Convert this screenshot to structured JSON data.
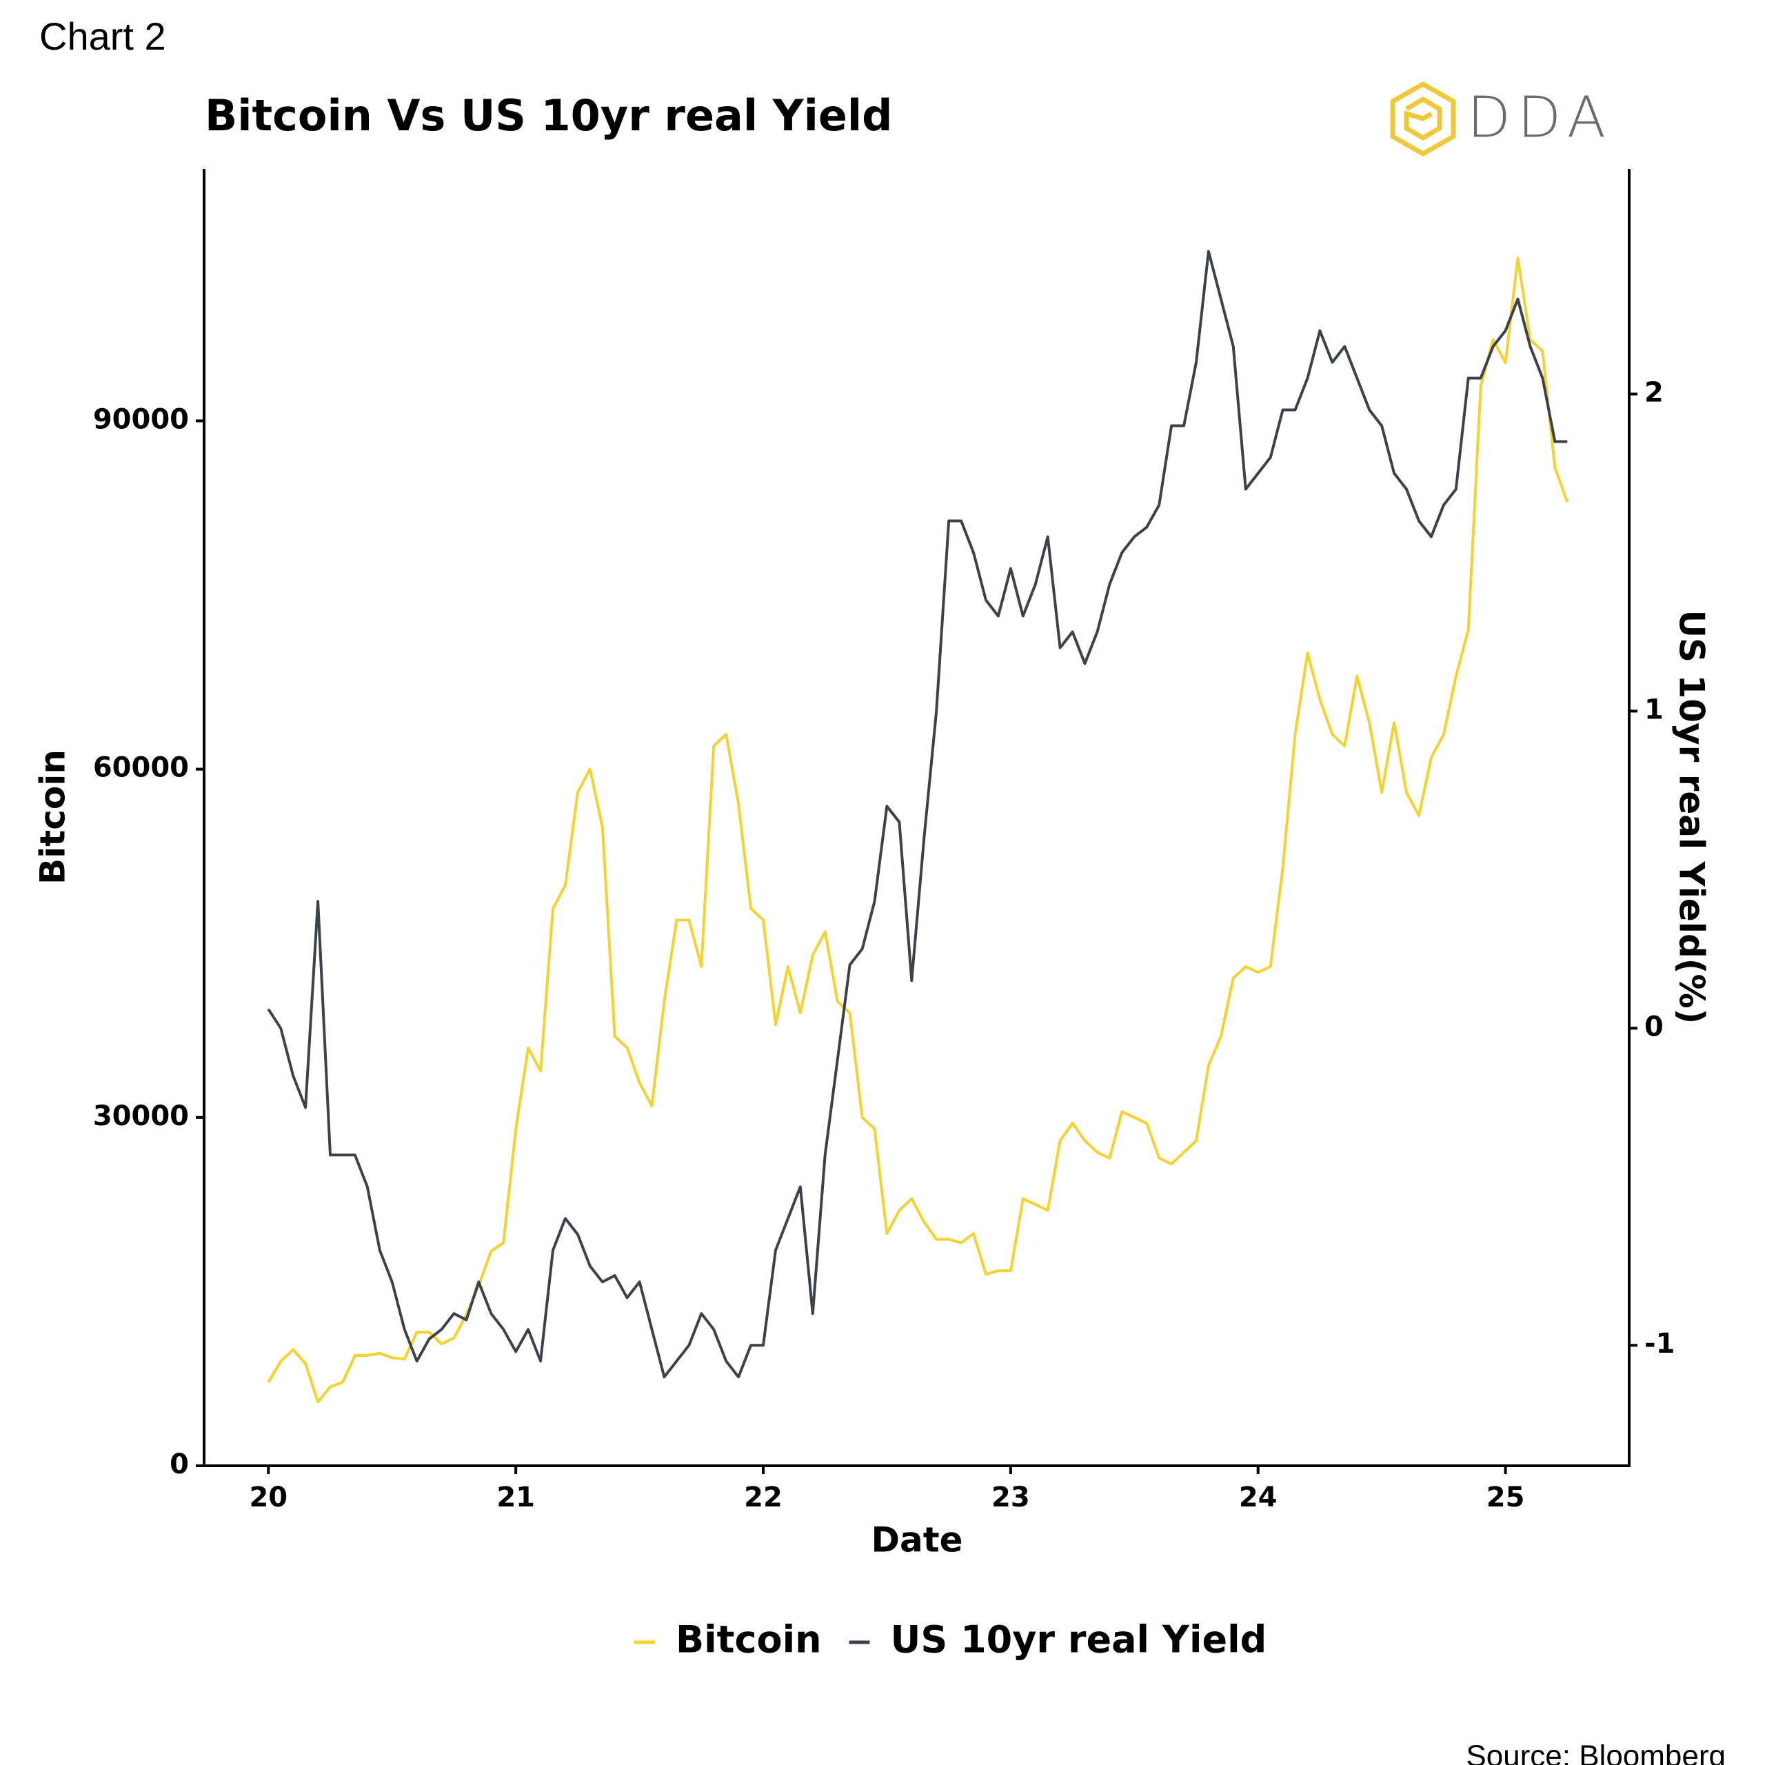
{
  "chart_data": {
    "type": "line",
    "chart_label": "Chart 2",
    "title": "Bitcoin Vs US 10yr real Yield",
    "logo_text": "DDA",
    "xlabel": "Date",
    "ylabel": "Bitcoin",
    "y2label": "US 10yr real Yield(%)",
    "source": "Source: Bloomberg",
    "legend": "bottom",
    "xlim": [
      19.74,
      25.5
    ],
    "xticks": [
      20,
      21,
      22,
      23,
      24,
      25
    ],
    "ylim": [
      0,
      111700
    ],
    "yticks": [
      0,
      30000,
      60000,
      90000
    ],
    "y2lim": [
      -1.38,
      2.71
    ],
    "y2ticks": [
      -1,
      0,
      1,
      2
    ],
    "x": [
      20.0,
      20.05,
      20.1,
      20.15,
      20.2,
      20.25,
      20.3,
      20.35,
      20.4,
      20.45,
      20.5,
      20.55,
      20.6,
      20.65,
      20.7,
      20.75,
      20.8,
      20.85,
      20.9,
      20.95,
      21.0,
      21.05,
      21.1,
      21.15,
      21.2,
      21.25,
      21.3,
      21.35,
      21.4,
      21.45,
      21.5,
      21.55,
      21.6,
      21.65,
      21.7,
      21.75,
      21.8,
      21.85,
      21.9,
      21.95,
      22.0,
      22.05,
      22.1,
      22.15,
      22.2,
      22.25,
      22.3,
      22.35,
      22.4,
      22.45,
      22.5,
      22.55,
      22.6,
      22.65,
      22.7,
      22.75,
      22.8,
      22.85,
      22.9,
      22.95,
      23.0,
      23.05,
      23.1,
      23.15,
      23.2,
      23.25,
      23.3,
      23.35,
      23.4,
      23.45,
      23.5,
      23.55,
      23.6,
      23.65,
      23.7,
      23.75,
      23.8,
      23.85,
      23.9,
      23.95,
      24.0,
      24.05,
      24.1,
      24.15,
      24.2,
      24.25,
      24.3,
      24.35,
      24.4,
      24.45,
      24.5,
      24.55,
      24.6,
      24.65,
      24.7,
      24.75,
      24.8,
      24.85,
      24.9,
      24.95,
      25.0,
      25.05,
      25.1,
      25.15,
      25.2,
      25.25
    ],
    "series": [
      {
        "name": "Bitcoin",
        "color": "#f5d132",
        "axis": "y",
        "values": [
          7200,
          9000,
          10000,
          8800,
          5500,
          6800,
          7200,
          9500,
          9500,
          9700,
          9300,
          9200,
          11500,
          11500,
          10500,
          11000,
          13000,
          15500,
          18500,
          19200,
          29000,
          36000,
          34000,
          48000,
          50000,
          58000,
          60000,
          55000,
          37000,
          36000,
          33000,
          31000,
          40000,
          47000,
          47000,
          43000,
          62000,
          63000,
          57000,
          48000,
          47000,
          38000,
          43000,
          39000,
          44000,
          46000,
          40000,
          39000,
          30000,
          29000,
          20000,
          22000,
          23000,
          21000,
          19500,
          19500,
          19200,
          20000,
          16500,
          16800,
          16800,
          23000,
          22500,
          22000,
          28000,
          29500,
          28000,
          27000,
          26500,
          30500,
          30000,
          29500,
          26500,
          26000,
          27000,
          28000,
          34500,
          37000,
          42000,
          43000,
          42500,
          43000,
          51500,
          63000,
          70000,
          66000,
          63000,
          62000,
          68000,
          64000,
          58000,
          64000,
          58000,
          56000,
          61000,
          63000,
          68000,
          72000,
          93000,
          97000,
          95000,
          104000,
          97000,
          96000,
          86000,
          83000
        ]
      },
      {
        "name": "US 10yr real Yield",
        "color": "#3d414b",
        "axis": "y2",
        "values": [
          0.06,
          0.0,
          -0.15,
          -0.25,
          0.4,
          -0.4,
          -0.4,
          -0.4,
          -0.5,
          -0.7,
          -0.8,
          -0.95,
          -1.05,
          -0.98,
          -0.95,
          -0.9,
          -0.92,
          -0.8,
          -0.9,
          -0.95,
          -1.02,
          -0.95,
          -1.05,
          -0.7,
          -0.6,
          -0.65,
          -0.75,
          -0.8,
          -0.78,
          -0.85,
          -0.8,
          -0.95,
          -1.1,
          -1.05,
          -1.0,
          -0.9,
          -0.95,
          -1.05,
          -1.1,
          -1.0,
          -1.0,
          -0.7,
          -0.6,
          -0.5,
          -0.9,
          -0.4,
          -0.1,
          0.2,
          0.25,
          0.4,
          0.7,
          0.65,
          0.15,
          0.6,
          1.0,
          1.6,
          1.6,
          1.5,
          1.35,
          1.3,
          1.45,
          1.3,
          1.4,
          1.55,
          1.2,
          1.25,
          1.15,
          1.25,
          1.4,
          1.5,
          1.55,
          1.58,
          1.65,
          1.9,
          1.9,
          2.1,
          2.45,
          2.3,
          2.15,
          1.7,
          1.75,
          1.8,
          1.95,
          1.95,
          2.05,
          2.2,
          2.1,
          2.15,
          2.05,
          1.95,
          1.9,
          1.75,
          1.7,
          1.6,
          1.55,
          1.65,
          1.7,
          2.05,
          2.05,
          2.15,
          2.2,
          2.3,
          2.15,
          2.05,
          1.85,
          1.85
        ]
      }
    ]
  }
}
